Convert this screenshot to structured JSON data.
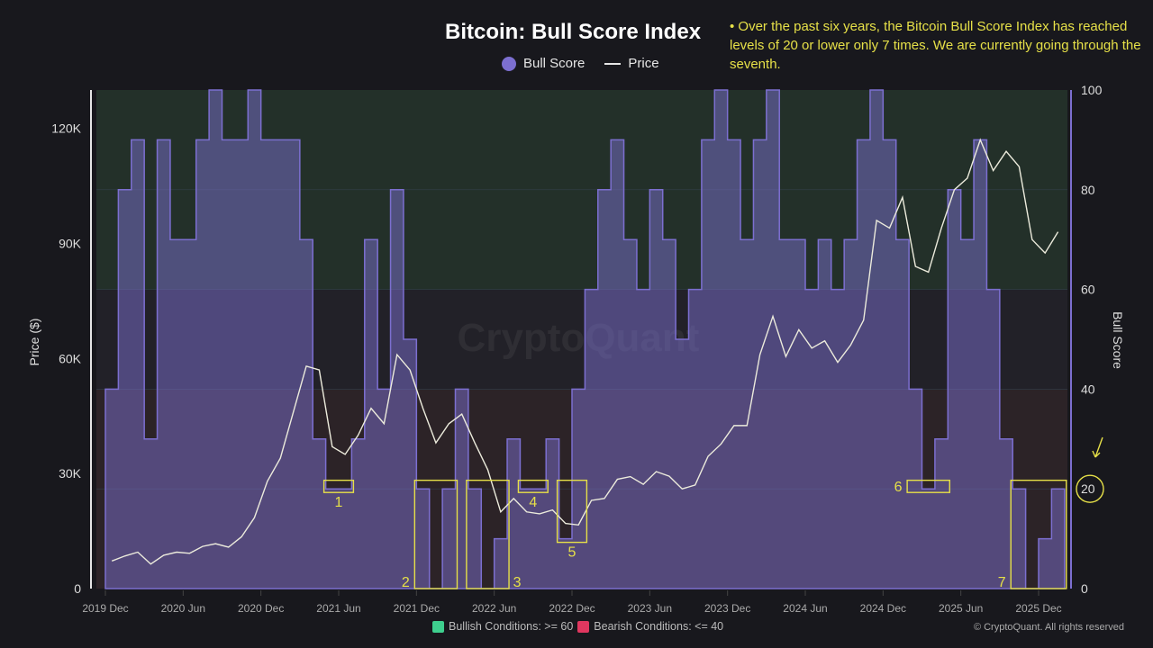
{
  "title": "Bitcoin: Bull Score Index",
  "legend": {
    "bull_score": "Bull Score",
    "price": "Price"
  },
  "note": "• Over the past six years, the Bitcoin Bull Score Index has reached levels of 20 or lower only 7 times. We are currently going through the seventh.",
  "conditions": {
    "bullish": "Bullish Conditions: >= 60",
    "bearish": "Bearish Conditions: <= 40",
    "bullish_color": "#3ecf8e",
    "bearish_color": "#e0375f"
  },
  "copyright": "© CryptoQuant. All rights reserved",
  "watermark": "CryptoQuant",
  "colors": {
    "bull_fill": "#7c6fd0",
    "price_line": "#ecebdc",
    "annotation": "#e6e048",
    "bull_zone": "#233029",
    "bear_zone": "#2c2327",
    "neutral_zone": "#222128"
  },
  "chart_data": {
    "type": "area+line",
    "title": "Bitcoin: Bull Score Index",
    "left_axis": {
      "label": "Price ($)",
      "range": [
        0,
        130000
      ],
      "ticks": [
        0,
        30000,
        60000,
        90000,
        120000
      ],
      "tick_labels": [
        "0",
        "30K",
        "60K",
        "90K",
        "120K"
      ]
    },
    "right_axis": {
      "label": "Bull Score",
      "range": [
        0,
        100
      ],
      "ticks": [
        0,
        20,
        40,
        60,
        80,
        100
      ],
      "tick_labels": [
        "0",
        "20",
        "40",
        "60",
        "80",
        "100"
      ]
    },
    "x_tick_labels": [
      "2019 Dec",
      "2020 Jun",
      "2020 Dec",
      "2021 Jun",
      "2021 Dec",
      "2022 Jun",
      "2022 Dec",
      "2023 Jun",
      "2023 Dec",
      "2024 Jun",
      "2024 Dec",
      "2025 Jun",
      "2025 Dec"
    ],
    "zones": [
      {
        "name": "bullish",
        "from": 60,
        "to": 100
      },
      {
        "name": "bearish",
        "from": 0,
        "to": 40
      }
    ],
    "months": [
      "2019-12",
      "2020-01",
      "2020-02",
      "2020-03",
      "2020-04",
      "2020-05",
      "2020-06",
      "2020-07",
      "2020-08",
      "2020-09",
      "2020-10",
      "2020-11",
      "2020-12",
      "2021-01",
      "2021-02",
      "2021-03",
      "2021-04",
      "2021-05",
      "2021-06",
      "2021-07",
      "2021-08",
      "2021-09",
      "2021-10",
      "2021-11",
      "2021-12",
      "2022-01",
      "2022-02",
      "2022-03",
      "2022-04",
      "2022-05",
      "2022-06",
      "2022-07",
      "2022-08",
      "2022-09",
      "2022-10",
      "2022-11",
      "2022-12",
      "2023-01",
      "2023-02",
      "2023-03",
      "2023-04",
      "2023-05",
      "2023-06",
      "2023-07",
      "2023-08",
      "2023-09",
      "2023-10",
      "2023-11",
      "2023-12",
      "2024-01",
      "2024-02",
      "2024-03",
      "2024-04",
      "2024-05",
      "2024-06",
      "2024-07",
      "2024-08",
      "2024-09",
      "2024-10",
      "2024-11",
      "2024-12",
      "2025-01",
      "2025-02",
      "2025-03",
      "2025-04",
      "2025-05",
      "2025-06",
      "2025-07",
      "2025-08",
      "2025-09",
      "2025-10",
      "2025-11",
      "2025-12",
      "2026-01"
    ],
    "series": [
      {
        "name": "Bull Score",
        "axis": "right",
        "values": [
          40,
          80,
          90,
          30,
          90,
          70,
          70,
          90,
          100,
          90,
          90,
          100,
          90,
          90,
          90,
          70,
          30,
          20,
          20,
          30,
          70,
          40,
          80,
          50,
          20,
          0,
          20,
          40,
          20,
          0,
          10,
          30,
          20,
          20,
          30,
          10,
          40,
          60,
          80,
          90,
          70,
          60,
          80,
          70,
          50,
          60,
          90,
          100,
          90,
          70,
          90,
          100,
          70,
          70,
          60,
          70,
          60,
          70,
          90,
          100,
          90,
          70,
          40,
          20,
          30,
          80,
          70,
          90,
          60,
          30,
          20,
          0,
          10,
          20
        ]
      },
      {
        "name": "Price",
        "axis": "left",
        "values": [
          7200,
          8500,
          9500,
          6400,
          8700,
          9500,
          9200,
          11000,
          11700,
          10800,
          13500,
          18500,
          28000,
          34000,
          46000,
          58000,
          57000,
          37000,
          35000,
          40000,
          47000,
          43000,
          61000,
          57000,
          47000,
          38000,
          43000,
          45500,
          38000,
          31000,
          20000,
          23500,
          20000,
          19500,
          20500,
          17000,
          16600,
          23000,
          23500,
          28500,
          29200,
          27200,
          30500,
          29300,
          26000,
          27000,
          34500,
          37700,
          42500,
          42500,
          61000,
          71000,
          60500,
          67500,
          62700,
          64600,
          59000,
          63500,
          70000,
          96000,
          94000,
          102000,
          84000,
          82500,
          94000,
          104000,
          107000,
          117000,
          109000,
          114000,
          110000,
          91000,
          87500,
          93000
        ]
      }
    ],
    "annotations": [
      {
        "label": "1",
        "from": "2021-05",
        "to": "2021-06"
      },
      {
        "label": "2",
        "from": "2021-12",
        "to": "2022-02"
      },
      {
        "label": "3",
        "from": "2022-04",
        "to": "2022-06"
      },
      {
        "label": "4",
        "from": "2022-08",
        "to": "2022-09"
      },
      {
        "label": "5",
        "from": "2022-11",
        "to": "2022-12"
      },
      {
        "label": "6",
        "from": "2025-02",
        "to": "2025-04"
      },
      {
        "label": "7",
        "from": "2025-10",
        "to": "2026-01"
      }
    ],
    "highlight_level": 20,
    "grid": true,
    "legend_position": "top"
  }
}
